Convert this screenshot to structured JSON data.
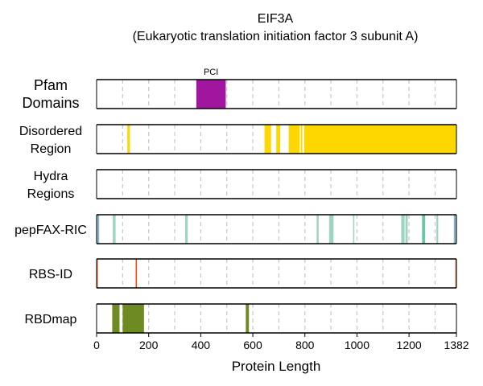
{
  "chart_data": {
    "type": "bar",
    "title": "EIF3A",
    "subtitle": "(Eukaryotic translation initiation factor 3 subunit A)",
    "xlabel": "Protein Length",
    "xlim": [
      0,
      1382
    ],
    "xticks": [
      0,
      200,
      400,
      600,
      800,
      1000,
      1200,
      1382
    ],
    "xtick_labels": [
      "0",
      "200",
      "400",
      "600",
      "800",
      "1000",
      "1200",
      "1382"
    ],
    "grid": "vertical dashed every 100",
    "tracks": [
      {
        "label_lines": [
          "Pfam",
          "Domains"
        ],
        "color": "#a0169e",
        "segments": [
          {
            "start": 383,
            "end": 496,
            "label": "PCI"
          }
        ]
      },
      {
        "label_lines": [
          "Disordered",
          "Region"
        ],
        "color": "#ffd700",
        "segments": [
          {
            "start": 118,
            "end": 128
          },
          {
            "start": 645,
            "end": 670
          },
          {
            "start": 690,
            "end": 705
          },
          {
            "start": 738,
            "end": 780
          },
          {
            "start": 784,
            "end": 790
          },
          {
            "start": 797,
            "end": 1382
          }
        ]
      },
      {
        "label_lines": [
          "Hydra",
          "Regions"
        ],
        "color": "#5b9bd5",
        "segments": []
      },
      {
        "label_lines": [
          "pepFAX-RIC"
        ],
        "color": "#9fd4c0",
        "segments": [
          {
            "start": 0,
            "end": 10,
            "color": "#8ab4cc"
          },
          {
            "start": 62,
            "end": 73
          },
          {
            "start": 340,
            "end": 350
          },
          {
            "start": 845,
            "end": 853
          },
          {
            "start": 893,
            "end": 910
          },
          {
            "start": 985,
            "end": 990
          },
          {
            "start": 1170,
            "end": 1183
          },
          {
            "start": 1186,
            "end": 1195
          },
          {
            "start": 1250,
            "end": 1262,
            "color": "#6cc4a4"
          },
          {
            "start": 1305,
            "end": 1312
          },
          {
            "start": 1372,
            "end": 1382,
            "color": "#8ab4cc"
          }
        ]
      },
      {
        "label_lines": [
          "RBS-ID"
        ],
        "color": "#e6501a",
        "segments": [
          {
            "start": 0,
            "end": 4
          },
          {
            "start": 150,
            "end": 155
          },
          {
            "start": 1378,
            "end": 1382
          }
        ]
      },
      {
        "label_lines": [
          "RBDmap"
        ],
        "color": "#6e8b23",
        "segments": [
          {
            "start": 60,
            "end": 88
          },
          {
            "start": 100,
            "end": 182
          },
          {
            "start": 573,
            "end": 585
          }
        ]
      }
    ]
  }
}
